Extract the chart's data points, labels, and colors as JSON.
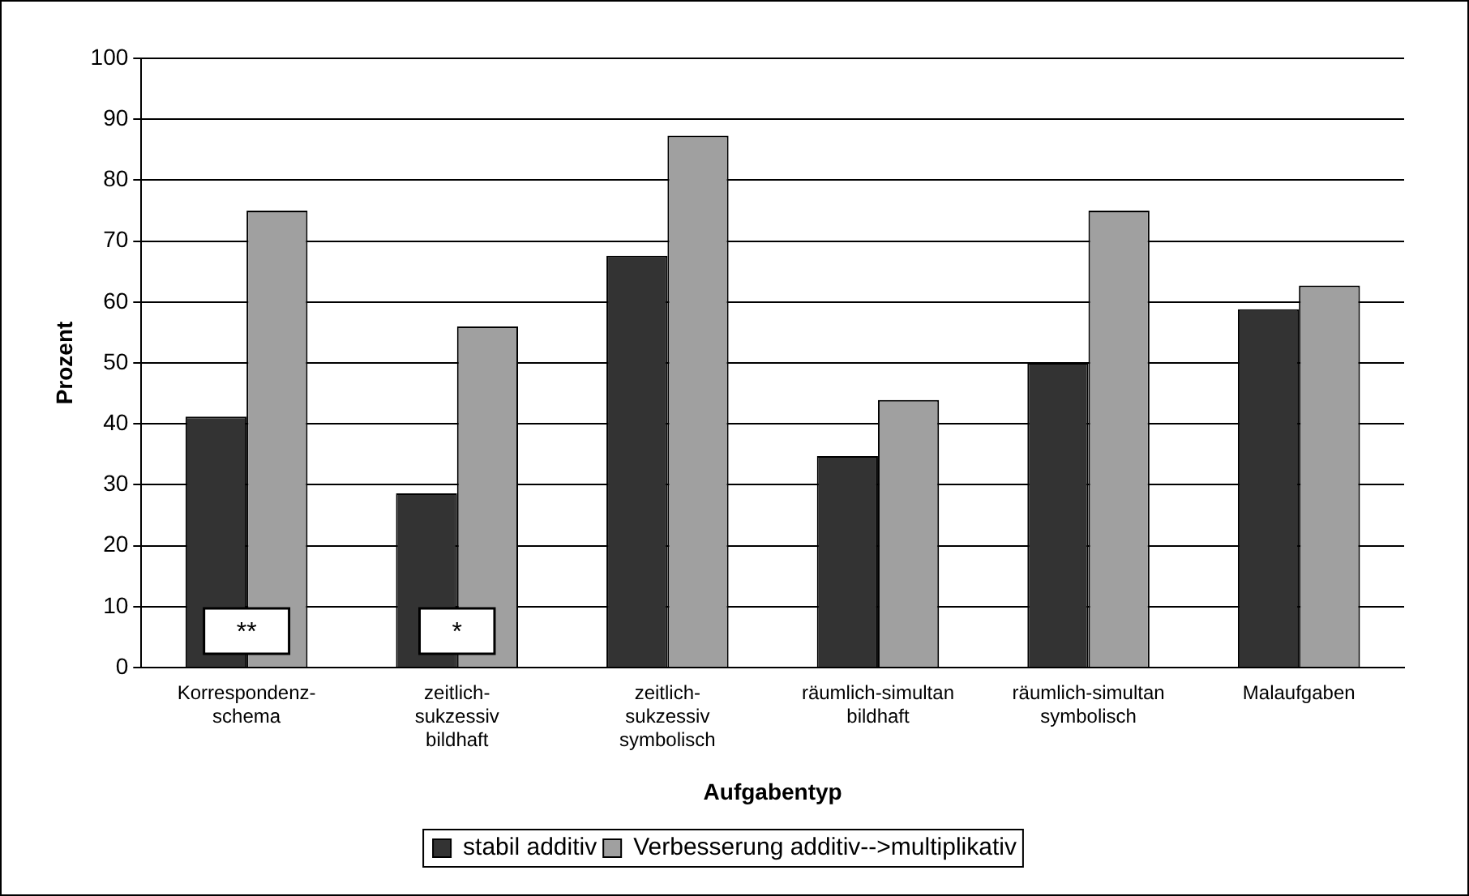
{
  "chart_data": {
    "type": "bar",
    "xlabel": "Aufgabentyp",
    "ylabel": "Prozent",
    "categories": [
      "Korrespondenz-\nschema",
      "zeitlich-\nsukzessiv\nbildhaft",
      "zeitlich-\nsukzessiv\nsymbolisch",
      "räumlich-simultan\nbildhaft",
      "räumlich-simultan\nsymbolisch",
      "Malaufgaben"
    ],
    "series": [
      {
        "name": "stabil additiv",
        "color": "#333333",
        "values": [
          41.2,
          28.6,
          67.6,
          34.7,
          50,
          58.8
        ]
      },
      {
        "name": "Verbesserung additiv-->multiplikativ",
        "color": "#a0a0a0",
        "values": [
          75,
          56,
          87.3,
          43.9,
          75,
          62.7
        ]
      }
    ],
    "ylim": [
      0,
      100
    ],
    "yticks": [
      0,
      10,
      20,
      30,
      40,
      50,
      60,
      70,
      80,
      90,
      100
    ],
    "grid": "y",
    "legend": "bottom",
    "annotations": [
      {
        "text": "**",
        "x": "Korrespondenz-\nschema",
        "y": 6
      },
      {
        "text": "*",
        "x": "zeitlich-\nsukzessiv\nbildhaft",
        "y": 6
      }
    ]
  }
}
